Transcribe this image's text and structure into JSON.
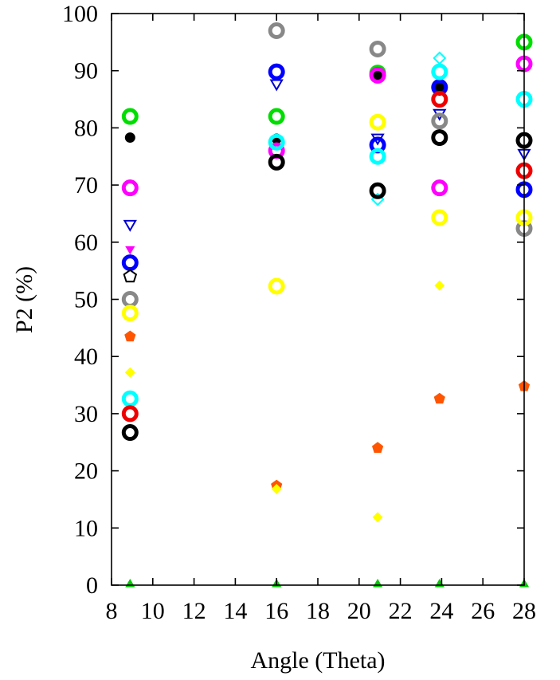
{
  "chart_data": {
    "type": "scatter",
    "title": "",
    "xlabel": "Angle (Theta)",
    "ylabel": "P2 (%)",
    "xlim": [
      8,
      28
    ],
    "ylim": [
      0,
      100
    ],
    "xticks": [
      8,
      10,
      12,
      14,
      16,
      18,
      20,
      22,
      24,
      26,
      28
    ],
    "yticks": [
      0,
      10,
      20,
      30,
      40,
      50,
      60,
      70,
      80,
      90,
      100
    ],
    "grid": false,
    "legend": "none",
    "series": [
      {
        "color": "#00dd00",
        "marker": "ring-bold",
        "x": [
          8.9,
          16,
          20.9,
          28
        ],
        "y": [
          82,
          82,
          89.6,
          95
        ]
      },
      {
        "color": "#000000",
        "marker": "dot",
        "x": [
          8.9,
          16,
          20.9,
          23.9
        ],
        "y": [
          78.3,
          78.1,
          89.3,
          87.2
        ]
      },
      {
        "color": "#ff00ff",
        "marker": "ring-bold",
        "x": [
          8.9,
          16,
          20.9,
          23.9,
          28
        ],
        "y": [
          69.5,
          76,
          89.2,
          69.5,
          91.2
        ]
      },
      {
        "color": "#0000cc",
        "marker": "triangle-down-open",
        "x": [
          8.9,
          16,
          20.9,
          23.9,
          28
        ],
        "y": [
          63.2,
          87.8,
          78.3,
          82.6,
          75.6
        ]
      },
      {
        "color": "#ff00ff",
        "marker": "triangle-down-filled",
        "x": [
          8.9
        ],
        "y": [
          58.8
        ]
      },
      {
        "color": "#0000ff",
        "marker": "ring-bold",
        "x": [
          8.9,
          16,
          20.9,
          23.9,
          28
        ],
        "y": [
          56.4,
          89.8,
          77,
          87.1,
          69.2
        ]
      },
      {
        "color": "#000000",
        "marker": "pentagon-open",
        "x": [
          8.9
        ],
        "y": [
          54
        ]
      },
      {
        "color": "#888888",
        "marker": "ring-bold",
        "x": [
          8.9,
          16,
          20.9,
          23.9,
          28
        ],
        "y": [
          50,
          97,
          93.8,
          81.2,
          62.4
        ]
      },
      {
        "color": "#ffff00",
        "marker": "ring-bold",
        "x": [
          8.9,
          16,
          20.9,
          23.9,
          28
        ],
        "y": [
          47.6,
          52.3,
          81,
          64.3,
          64.3
        ]
      },
      {
        "color": "#ff5500",
        "marker": "pentagon-filled",
        "x": [
          8.9,
          16,
          20.9,
          23.9,
          28
        ],
        "y": [
          43.5,
          17.4,
          24,
          32.6,
          34.8
        ]
      },
      {
        "color": "#ffff00",
        "marker": "diamond-filled",
        "x": [
          8.9,
          16,
          20.9,
          23.9
        ],
        "y": [
          37.2,
          16.8,
          11.9,
          52.4
        ]
      },
      {
        "color": "#00ffff",
        "marker": "ring-bold",
        "x": [
          8.9,
          16,
          20.9,
          23.9,
          28
        ],
        "y": [
          32.6,
          77.5,
          75,
          89.8,
          85
        ]
      },
      {
        "color": "#00ffff",
        "marker": "diamond-open",
        "x": [
          20.9,
          23.9
        ],
        "y": [
          67.5,
          92.2
        ]
      },
      {
        "color": "#ee0000",
        "marker": "ring-bold",
        "x": [
          8.9,
          23.9,
          28
        ],
        "y": [
          30,
          85,
          72.5
        ]
      },
      {
        "color": "#000000",
        "marker": "ring-bold",
        "x": [
          8.9,
          16,
          20.9,
          23.9,
          28
        ],
        "y": [
          26.7,
          74,
          69,
          78.3,
          77.8
        ]
      },
      {
        "color": "#00cc00",
        "marker": "triangle-up-filled",
        "x": [
          8.9,
          16,
          20.9,
          23.9,
          28
        ],
        "y": [
          0,
          0,
          0,
          0,
          0
        ]
      }
    ]
  }
}
